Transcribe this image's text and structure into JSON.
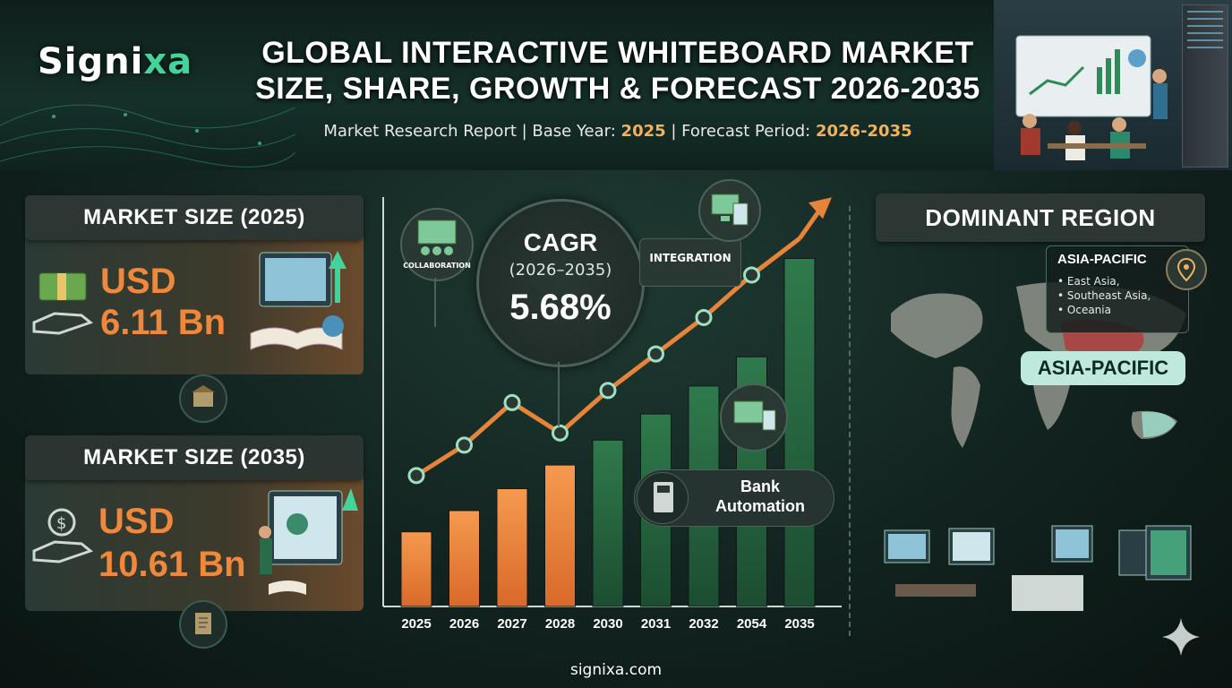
{
  "brand": {
    "logo_prefix": "Signi",
    "logo_accent": "xa",
    "url": "signixa.com"
  },
  "header": {
    "title_line1": "GLOBAL INTERACTIVE WHITEBOARD MARKET",
    "title_line2": "SIZE, SHARE, GROWTH & FORECAST 2026-2035",
    "subtitle_prefix": "Market Research Report | Base Year: ",
    "base_year": "2025",
    "subtitle_mid": " | Forecast Period: ",
    "forecast_period": "2026-2035"
  },
  "market_2025": {
    "heading": "MARKET SIZE (2025)",
    "currency": "USD",
    "value": "6.11 Bn"
  },
  "market_2035": {
    "heading": "MARKET SIZE (2035)",
    "currency": "USD",
    "value": "10.61 Bn"
  },
  "cagr": {
    "label": "CAGR",
    "period": "(2026–2035)",
    "value": "5.68%"
  },
  "callouts": {
    "collaboration": "COLLABORATION",
    "integration": "INTEGRATION",
    "bank_line1": "Bank",
    "bank_line2": "Automation"
  },
  "region": {
    "heading": "DOMINANT REGION",
    "callout_title": "ASIA-PACIFIC",
    "subregions": [
      "East Asia,",
      "Southeast Asia,",
      "Oceania"
    ],
    "badge": "ASIA-PACIFIC"
  },
  "colors": {
    "orange": "#f0873a",
    "green": "#2e6b45",
    "accent": "#46d39b",
    "highlight": "#f3b15c"
  },
  "chart_data": {
    "type": "bar",
    "categories": [
      "2025",
      "2026",
      "2027",
      "2028",
      "2030",
      "2031",
      "2032",
      "2054",
      "2035"
    ],
    "values": [
      6.11,
      6.46,
      6.82,
      7.21,
      7.62,
      8.05,
      8.51,
      8.99,
      10.61
    ],
    "bar_colors": [
      "#f0873a",
      "#f0873a",
      "#f0873a",
      "#f0873a",
      "#2e6b45",
      "#2e6b45",
      "#2e6b45",
      "#2e6b45",
      "#2e6b45"
    ],
    "trend_values": [
      6.3,
      6.8,
      7.5,
      7.0,
      7.7,
      8.3,
      8.9,
      9.6,
      10.2
    ],
    "ylim": [
      5,
      11
    ],
    "title": "",
    "xlabel": "",
    "ylabel": ""
  }
}
